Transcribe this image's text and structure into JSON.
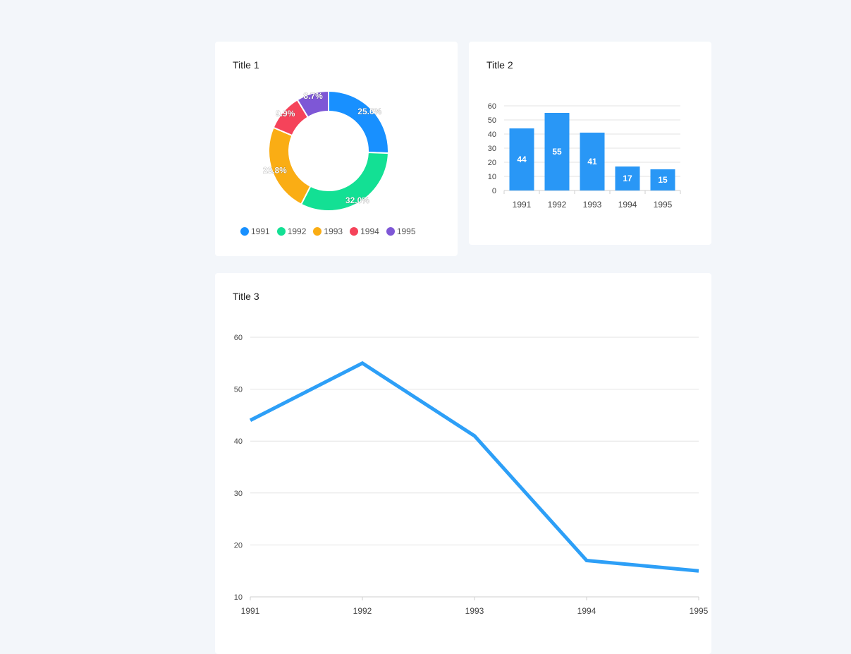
{
  "colors": {
    "c1991": "#1890ff",
    "c1992": "#13e094",
    "c1993": "#faad14",
    "c1994": "#f5435a",
    "c1995": "#7e57d6",
    "bar": "#2997f6",
    "line": "#2d9ff7"
  },
  "card1": {
    "title": "Title 1"
  },
  "card2": {
    "title": "Title 2"
  },
  "card3": {
    "title": "Title 3"
  },
  "chart_data": [
    {
      "type": "pie",
      "title": "Title 1",
      "categories": [
        "1991",
        "1992",
        "1993",
        "1994",
        "1995"
      ],
      "values": [
        44,
        55,
        41,
        17,
        15
      ],
      "labels": [
        "25.6%",
        "32.0%",
        "23.8%",
        "9.9%",
        "8.7%"
      ],
      "legend": "bottom"
    },
    {
      "type": "bar",
      "title": "Title 2",
      "categories": [
        "1991",
        "1992",
        "1993",
        "1994",
        "1995"
      ],
      "values": [
        44,
        55,
        41,
        17,
        15
      ],
      "ylim": [
        0,
        60
      ],
      "yticks": [
        "0",
        "10",
        "20",
        "30",
        "40",
        "50",
        "60"
      ],
      "grid": true
    },
    {
      "type": "line",
      "title": "Title 3",
      "categories": [
        "1991",
        "1992",
        "1993",
        "1994",
        "1995"
      ],
      "values": [
        44,
        55,
        41,
        17,
        15
      ],
      "ylim": [
        10,
        60
      ],
      "yticks": [
        "10",
        "20",
        "30",
        "40",
        "50",
        "60"
      ],
      "grid": true
    }
  ]
}
